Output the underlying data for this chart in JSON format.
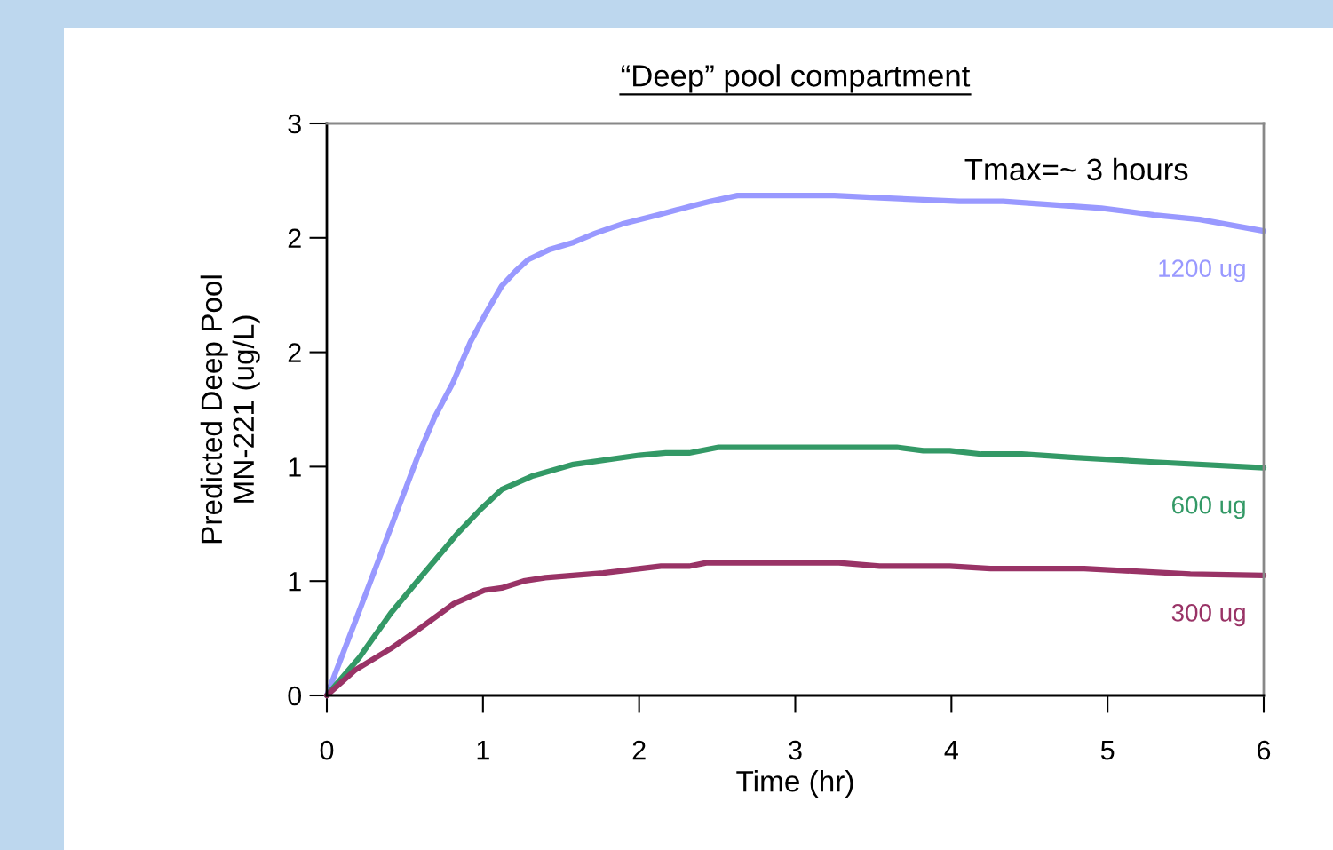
{
  "chart_data": {
    "type": "line",
    "title": "“Deep” pool compartment",
    "xlabel": "Time (hr)",
    "ylabel": "Predicted Deep Pool\nMN-221 (ug/L)",
    "annotations": [
      "Tmax=~ 3 hours"
    ],
    "xlim": [
      0,
      6
    ],
    "xticks": [
      0,
      1,
      2,
      3,
      4,
      5,
      6
    ],
    "ylim": [
      0,
      2.5
    ],
    "yticks": [
      0,
      {
        "value": 0.5,
        "label": "1"
      },
      1,
      {
        "value": 1.5,
        "label": "2"
      },
      2,
      {
        "value": 2.5,
        "label": "3"
      }
    ],
    "grid": false,
    "legend": false,
    "marker": "none",
    "line_style": "solid",
    "series": [
      {
        "name": "1200 ug",
        "color": "#9999ff",
        "x": [
          0,
          0.18,
          0.35,
          0.58,
          0.69,
          0.81,
          0.92,
          1.01,
          1.12,
          1.21,
          1.29,
          1.43,
          1.58,
          1.72,
          1.89,
          2.12,
          2.34,
          2.46,
          2.63,
          3.25,
          3.54,
          4.05,
          4.33,
          4.96,
          5.3,
          5.59,
          6
        ],
        "values": [
          0,
          0.32,
          0.625,
          1.04,
          1.215,
          1.37,
          1.545,
          1.66,
          1.79,
          1.855,
          1.905,
          1.95,
          1.98,
          2.02,
          2.06,
          2.1,
          2.14,
          2.16,
          2.185,
          2.185,
          2.175,
          2.16,
          2.16,
          2.13,
          2.1,
          2.08,
          2.03
        ]
      },
      {
        "name": "600 ug",
        "color": "#339966",
        "x": [
          0,
          0.21,
          0.27,
          0.41,
          0.58,
          0.84,
          0.98,
          1.12,
          1.32,
          1.58,
          2.0,
          2.17,
          2.32,
          2.51,
          3.65,
          3.82,
          3.99,
          4.19,
          4.45,
          4.79,
          5.3,
          6
        ],
        "values": [
          0,
          0.167,
          0.225,
          0.36,
          0.5,
          0.71,
          0.81,
          0.9,
          0.96,
          1.01,
          1.05,
          1.06,
          1.06,
          1.085,
          1.085,
          1.07,
          1.07,
          1.055,
          1.055,
          1.04,
          1.02,
          0.995
        ]
      },
      {
        "name": "300 ug",
        "color": "#993366",
        "x": [
          0,
          0.18,
          0.41,
          0.61,
          0.81,
          1.01,
          1.12,
          1.26,
          1.4,
          1.77,
          2.14,
          2.32,
          2.43,
          3.28,
          3.54,
          3.99,
          4.25,
          4.85,
          5.53,
          6
        ],
        "values": [
          0,
          0.11,
          0.205,
          0.3,
          0.4,
          0.46,
          0.47,
          0.5,
          0.515,
          0.535,
          0.565,
          0.565,
          0.58,
          0.58,
          0.565,
          0.565,
          0.555,
          0.555,
          0.53,
          0.525
        ]
      }
    ]
  }
}
